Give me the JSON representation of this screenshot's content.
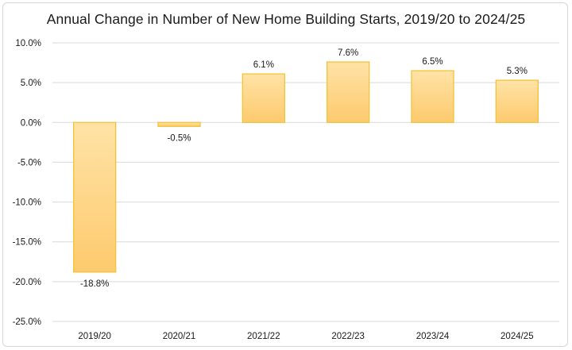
{
  "chart_data": {
    "type": "bar",
    "title": "Annual Change in Number of New Home Building Starts, 2019/20 to 2024/25",
    "categories": [
      "2019/20",
      "2020/21",
      "2021/22",
      "2022/23",
      "2023/24",
      "2024/25"
    ],
    "values": [
      -18.8,
      -0.5,
      6.1,
      7.6,
      6.5,
      5.3
    ],
    "data_labels": [
      "-18.8%",
      "-0.5%",
      "6.1%",
      "7.6%",
      "6.5%",
      "5.3%"
    ],
    "xlabel": "",
    "ylabel": "",
    "ylim": [
      -25,
      10
    ],
    "yticks": [
      10,
      5,
      0,
      -5,
      -10,
      -15,
      -20,
      -25
    ],
    "ytick_labels": [
      "10.0%",
      "5.0%",
      "0.0%",
      "-5.0%",
      "-10.0%",
      "-15.0%",
      "-20.0%",
      "-25.0%"
    ],
    "grid": true,
    "legend": "none",
    "colors": {
      "bar_top": "#ffe3a6",
      "bar_bottom": "#fdca6e",
      "bar_stroke": "#f2c43a",
      "grid": "#d9d9d9"
    }
  }
}
